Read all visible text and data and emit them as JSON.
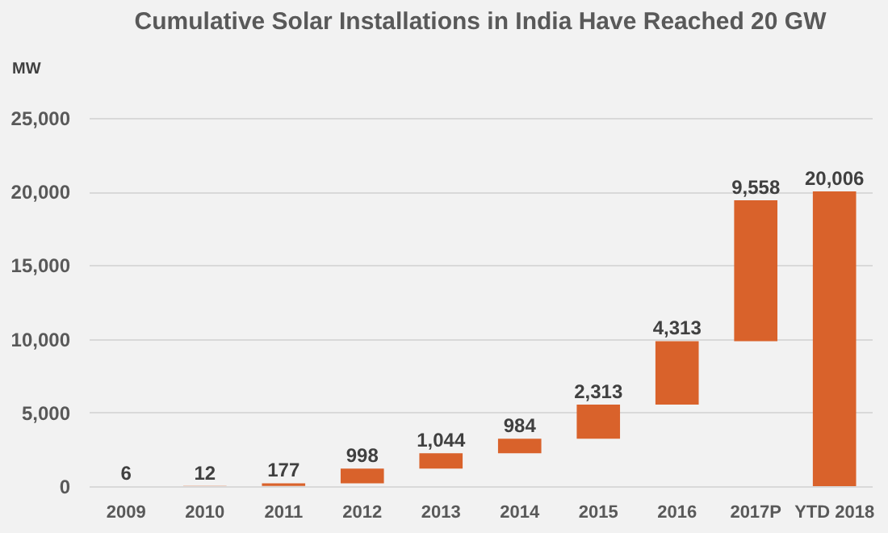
{
  "chart_data": {
    "type": "bar",
    "title": "Cumulative Solar Installations in India Have Reached 20 GW",
    "ylabel": "MW",
    "categories": [
      "2009",
      "2010",
      "2011",
      "2012",
      "2013",
      "2014",
      "2015",
      "2016",
      "2017P",
      "YTD 2018"
    ],
    "values": [
      6,
      12,
      177,
      998,
      1044,
      984,
      2313,
      4313,
      9558,
      20006
    ],
    "base": [
      0,
      6,
      18,
      195,
      1193,
      2237,
      3221,
      5534,
      9847,
      0
    ],
    "value_labels": [
      "6",
      "12",
      "177",
      "998",
      "1,044",
      "984",
      "2,313",
      "4,313",
      "9,558",
      "20,006"
    ],
    "color": "#d9622b",
    "ylim": [
      0,
      25000
    ],
    "yticks": [
      0,
      {
        "value": 5000,
        "label": "5,000"
      },
      {
        "value": 10000,
        "label": "10,000"
      },
      {
        "value": 15000,
        "label": "15,000"
      },
      {
        "value": 20000,
        "label": "20,000"
      },
      {
        "value": 25000,
        "label": "25,000"
      }
    ],
    "grid": "y"
  }
}
